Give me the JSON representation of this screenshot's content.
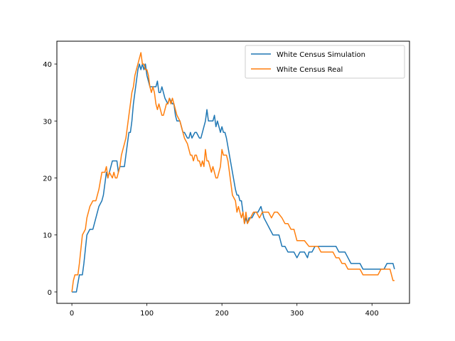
{
  "chart_data": {
    "type": "line",
    "title": "",
    "xlabel": "",
    "ylabel": "",
    "xlim": [
      -20,
      450
    ],
    "ylim": [
      -2,
      44
    ],
    "grid": false,
    "legend_placement": "top-right",
    "xticks": [
      0,
      100,
      200,
      300,
      400
    ],
    "yticks": [
      0,
      10,
      20,
      30,
      40
    ],
    "series": [
      {
        "name": "White Census Simulation",
        "color": "#1f77b4",
        "x": [
          0,
          4,
          6,
          10,
          12,
          14,
          16,
          20,
          24,
          28,
          32,
          36,
          40,
          42,
          44,
          46,
          48,
          50,
          54,
          58,
          60,
          62,
          64,
          66,
          68,
          70,
          72,
          74,
          76,
          78,
          80,
          82,
          84,
          86,
          88,
          90,
          92,
          94,
          96,
          98,
          100,
          104,
          108,
          112,
          114,
          116,
          118,
          120,
          122,
          124,
          128,
          130,
          134,
          136,
          138,
          140,
          144,
          146,
          148,
          150,
          154,
          156,
          158,
          160,
          164,
          166,
          170,
          172,
          174,
          176,
          178,
          180,
          182,
          184,
          186,
          188,
          190,
          192,
          194,
          196,
          198,
          200,
          202,
          204,
          206,
          210,
          214,
          218,
          220,
          222,
          224,
          226,
          230,
          232,
          234,
          236,
          240,
          244,
          248,
          252,
          254,
          256,
          260,
          264,
          268,
          272,
          276,
          280,
          284,
          288,
          292,
          296,
          300,
          304,
          310,
          314,
          316,
          318,
          320,
          324,
          328,
          332,
          336,
          340,
          344,
          348,
          352,
          356,
          360,
          364,
          368,
          372,
          376,
          380,
          384,
          388,
          392,
          396,
          400,
          404,
          408,
          412,
          416,
          420,
          424,
          428,
          430
        ],
        "y": [
          0,
          0,
          0,
          3,
          3,
          3,
          5,
          10,
          11,
          11,
          13,
          15,
          16,
          17,
          19,
          21,
          20,
          21,
          23,
          23,
          23,
          21,
          22,
          22,
          22,
          22,
          24,
          26,
          28,
          28,
          30,
          33,
          35,
          37,
          39,
          40,
          39,
          40,
          39,
          40,
          38,
          36,
          36,
          36,
          37,
          35,
          35,
          36,
          35,
          34,
          33,
          34,
          33,
          33,
          31,
          30,
          30,
          29,
          28,
          28,
          27,
          27,
          28,
          27,
          28,
          28,
          27,
          27,
          28,
          29,
          30,
          32,
          30,
          30,
          30,
          30,
          31,
          29,
          30,
          29,
          28,
          29,
          28,
          28,
          27,
          24,
          21,
          18,
          17,
          17,
          16,
          16,
          12,
          13,
          12,
          13,
          13,
          14,
          14,
          15,
          14,
          13,
          12,
          11,
          10,
          10,
          10,
          8,
          8,
          7,
          7,
          7,
          6,
          7,
          7,
          6,
          7,
          7,
          7,
          8,
          8,
          8,
          8,
          8,
          8,
          8,
          8,
          7,
          7,
          7,
          6,
          5,
          5,
          5,
          5,
          4,
          4,
          4,
          4,
          4,
          4,
          4,
          4,
          5,
          5,
          5,
          4
        ],
        "_end": 0
      },
      {
        "name": "White Census Real",
        "color": "#ff7f0e",
        "x": [
          0,
          2,
          4,
          8,
          10,
          14,
          18,
          20,
          24,
          28,
          32,
          36,
          40,
          44,
          46,
          48,
          50,
          54,
          56,
          58,
          60,
          62,
          64,
          66,
          70,
          72,
          74,
          76,
          78,
          80,
          82,
          84,
          86,
          88,
          90,
          92,
          94,
          96,
          98,
          100,
          102,
          104,
          106,
          108,
          110,
          112,
          114,
          116,
          118,
          120,
          122,
          124,
          126,
          128,
          130,
          132,
          134,
          136,
          138,
          140,
          144,
          148,
          150,
          154,
          156,
          158,
          160,
          162,
          164,
          166,
          168,
          170,
          172,
          174,
          176,
          178,
          180,
          182,
          184,
          186,
          188,
          190,
          192,
          194,
          196,
          198,
          200,
          202,
          204,
          206,
          208,
          210,
          214,
          218,
          220,
          222,
          226,
          228,
          230,
          232,
          234,
          238,
          242,
          246,
          250,
          254,
          258,
          262,
          266,
          270,
          274,
          280,
          284,
          288,
          292,
          296,
          300,
          304,
          310,
          316,
          320,
          324,
          328,
          332,
          336,
          340,
          344,
          348,
          352,
          356,
          360,
          364,
          368,
          372,
          376,
          380,
          384,
          388,
          392,
          396,
          400,
          404,
          408,
          412,
          416,
          420,
          424,
          428,
          430
        ],
        "y": [
          0,
          2,
          3,
          3,
          5,
          10,
          11,
          13,
          15,
          16,
          16,
          18,
          21,
          21,
          22,
          20,
          21,
          20,
          21,
          20,
          20,
          21,
          22,
          24,
          26,
          27,
          29,
          31,
          33,
          35,
          36,
          38,
          39,
          40,
          41,
          42,
          40,
          40,
          39,
          39,
          38,
          36,
          35,
          36,
          35,
          33,
          32,
          33,
          32,
          31,
          31,
          32,
          33,
          33,
          34,
          33,
          34,
          33,
          32,
          31,
          30,
          28,
          27,
          26,
          25,
          24,
          24,
          23,
          24,
          24,
          23,
          23,
          22,
          23,
          22,
          25,
          23,
          23,
          22,
          21,
          22,
          21,
          20,
          20,
          21,
          22,
          25,
          24,
          24,
          24,
          23,
          21,
          17,
          16,
          14,
          15,
          13,
          14,
          12,
          14,
          12,
          13,
          14,
          14,
          13,
          14,
          14,
          14,
          13,
          14,
          14,
          13,
          12,
          12,
          11,
          11,
          9,
          9,
          9,
          8,
          8,
          8,
          8,
          7,
          7,
          7,
          7,
          7,
          6,
          6,
          5,
          5,
          4,
          4,
          4,
          4,
          4,
          3,
          3,
          3,
          3,
          3,
          3,
          4,
          4,
          4,
          4,
          2,
          2
        ],
        "_end": 0
      }
    ]
  }
}
